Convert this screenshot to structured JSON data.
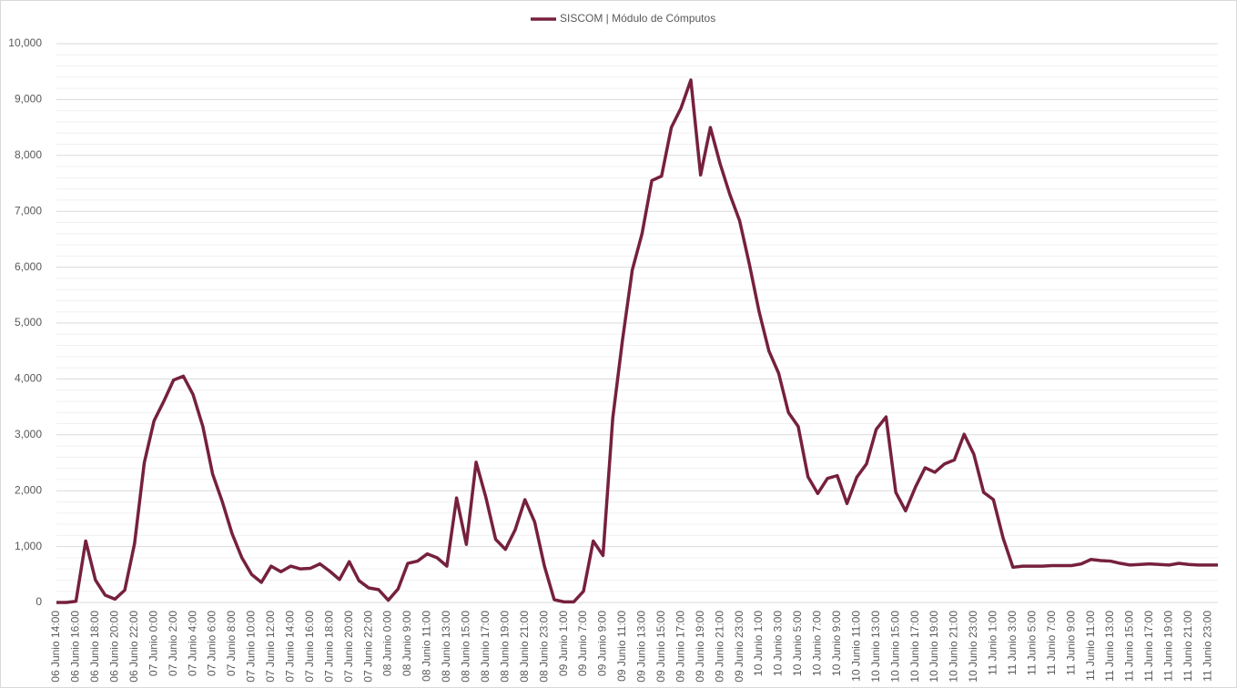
{
  "chart_data": {
    "type": "line",
    "series": [
      {
        "name": "SISCOM | Módulo de Cómputos",
        "color": "#76203f",
        "values": [
          0,
          0,
          20,
          1100,
          400,
          130,
          60,
          220,
          1050,
          2500,
          3250,
          3600,
          3980,
          4050,
          3720,
          3150,
          2300,
          1800,
          1230,
          800,
          500,
          360,
          650,
          550,
          650,
          600,
          610,
          690,
          560,
          410,
          730,
          390,
          260,
          230,
          40,
          240,
          700,
          740,
          870,
          800,
          650,
          1870,
          1040,
          2510,
          1880,
          1130,
          950,
          1300,
          1840,
          1440,
          650,
          50,
          10,
          10,
          200,
          1100,
          840,
          3300,
          4700,
          5950,
          6600,
          7550,
          7630,
          8500,
          8850,
          9350,
          7650,
          8500,
          7850,
          7300,
          6830,
          6050,
          5200,
          4500,
          4100,
          3400,
          3150,
          2250,
          1950,
          2220,
          2270,
          1770,
          2240,
          2480,
          3100,
          3320,
          1970,
          1640,
          2060,
          2410,
          2330,
          2480,
          2550,
          3010,
          2650,
          1970,
          1840,
          1150,
          630,
          650,
          650,
          650,
          660,
          660,
          660,
          690,
          770,
          750,
          740,
          700,
          670,
          680,
          690,
          680,
          670,
          700,
          680,
          670,
          670,
          670
        ]
      }
    ],
    "categories": [
      "06 Junio 14:00",
      null,
      "06 Junio 16:00",
      null,
      "06 Junio 18:00",
      null,
      "06 Junio 20:00",
      null,
      "06 Junio 22:00",
      null,
      "07 Junio 0:00",
      null,
      "07 Junio 2:00",
      null,
      "07 Junio 4:00",
      null,
      "07 Junio 6:00",
      null,
      "07 Junio 8:00",
      null,
      "07 Junio 10:00",
      null,
      "07 Junio 12:00",
      null,
      "07 Junio 14:00",
      null,
      "07 Junio 16:00",
      null,
      "07 Junio 18:00",
      null,
      "07 Junio 20:00",
      null,
      "07 Junio 22:00",
      null,
      "08 Junio 0:00",
      null,
      "08 Junio 9:00",
      null,
      "08 Junio 11:00",
      null,
      "08 Junio 13:00",
      null,
      "08 Junio 15:00",
      null,
      "08 Junio 17:00",
      null,
      "08 Junio 19:00",
      null,
      "08 Junio 21:00",
      null,
      "08 Junio 23:00",
      null,
      "09 Junio 1:00",
      null,
      "09 Junio 7:00",
      null,
      "09 Junio 9:00",
      null,
      "09 Junio 11:00",
      null,
      "09 Junio 13:00",
      null,
      "09 Junio 15:00",
      null,
      "09 Junio 17:00",
      null,
      "09 Junio 19:00",
      null,
      "09 Junio 21:00",
      null,
      "09 Junio 23:00",
      null,
      "10 Junio 1:00",
      null,
      "10 Junio 3:00",
      null,
      "10 Junio 5:00",
      null,
      "10 Junio 7:00",
      null,
      "10 Junio 9:00",
      null,
      "10 Junio 11:00",
      null,
      "10 Junio 13:00",
      null,
      "10 Junio 15:00",
      null,
      "10 Junio 17:00",
      null,
      "10 Junio 19:00",
      null,
      "10 Junio 21:00",
      null,
      "10 Junio 23:00",
      null,
      "11 Junio 1:00",
      null,
      "11 Junio 3:00",
      null,
      "11 Junio 5:00",
      null,
      "11 Junio 7:00",
      null,
      "11 Junio 9:00",
      null,
      "11 Junio 11:00",
      null,
      "11 Junio 13:00",
      null,
      "11 Junio 15:00",
      null,
      "11 Junio 17:00",
      null,
      "11 Junio 19:00",
      null,
      "11 Junio 21:00",
      null,
      "11 Junio 23:00",
      null
    ],
    "ylim": [
      0,
      10000
    ],
    "yticks": [
      0,
      {
        "value": 1000,
        "label": "1,000"
      },
      {
        "value": 2000,
        "label": "2,000"
      },
      {
        "value": 3000,
        "label": "3,000"
      },
      {
        "value": 4000,
        "label": "4,000"
      },
      {
        "value": 5000,
        "label": "5,000"
      },
      {
        "value": 6000,
        "label": "6,000"
      },
      {
        "value": 7000,
        "label": "7,000"
      },
      {
        "value": 8000,
        "label": "8,000"
      },
      {
        "value": 9000,
        "label": "9,000"
      },
      {
        "value": 10000,
        "label": "10,000"
      }
    ],
    "grid": true,
    "legend": "top"
  }
}
